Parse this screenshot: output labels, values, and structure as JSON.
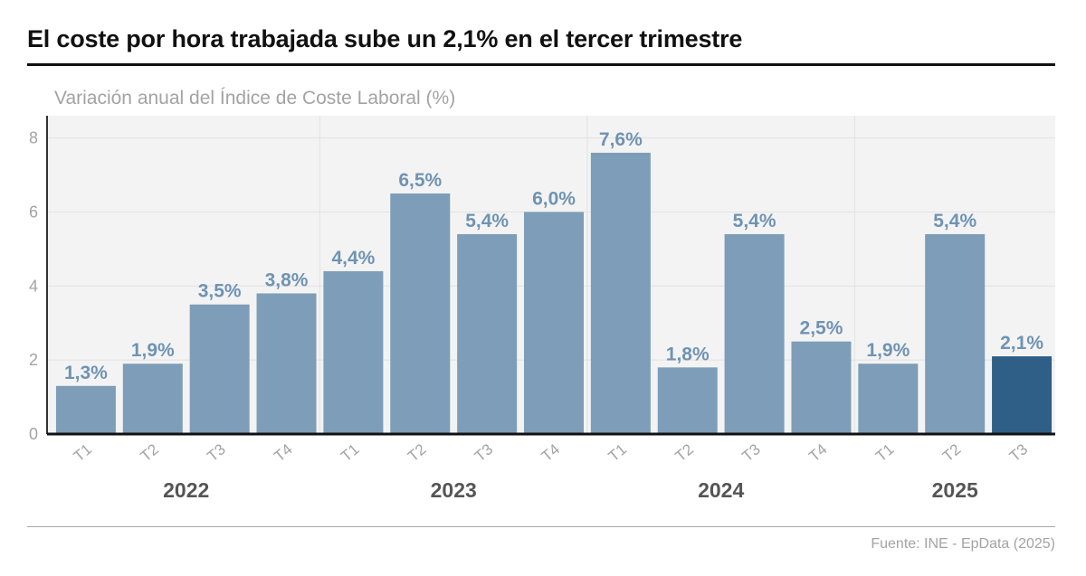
{
  "headline": "El coste por hora trabajada sube un 2,1% en el tercer trimestre",
  "source": "Fuente: INE - EpData (2025)",
  "colors": {
    "bar": "#7d9db8",
    "highlight": "#2f5f86",
    "label": "#6f93b3",
    "plot_bg": "#f3f3f3"
  },
  "chart_data": {
    "type": "bar",
    "title": "El coste por hora trabajada sube un 2,1% en el tercer trimestre",
    "ylabel": "Variación anual del Índice de Coste Laboral (%)",
    "xlabel": "",
    "ylim": [
      0,
      8.6
    ],
    "yticks": [
      0,
      2,
      4,
      6,
      8
    ],
    "grid": true,
    "categories": [
      "T1",
      "T2",
      "T3",
      "T4",
      "T1",
      "T2",
      "T3",
      "T4",
      "T1",
      "T2",
      "T3",
      "T4",
      "T1",
      "T2",
      "T3"
    ],
    "years": [
      {
        "label": "2022",
        "quarters": 4
      },
      {
        "label": "2023",
        "quarters": 4
      },
      {
        "label": "2024",
        "quarters": 4
      },
      {
        "label": "2025",
        "quarters": 3
      }
    ],
    "values": [
      1.3,
      1.9,
      3.5,
      3.8,
      4.4,
      6.5,
      5.4,
      6.0,
      7.6,
      1.8,
      5.4,
      2.5,
      1.9,
      5.4,
      2.1
    ],
    "value_labels": [
      "1,3%",
      "1,9%",
      "3,5%",
      "3,8%",
      "4,4%",
      "6,5%",
      "5,4%",
      "6,0%",
      "7,6%",
      "1,8%",
      "5,4%",
      "2,5%",
      "1,9%",
      "5,4%",
      "2,1%"
    ],
    "highlight_index": 14
  }
}
